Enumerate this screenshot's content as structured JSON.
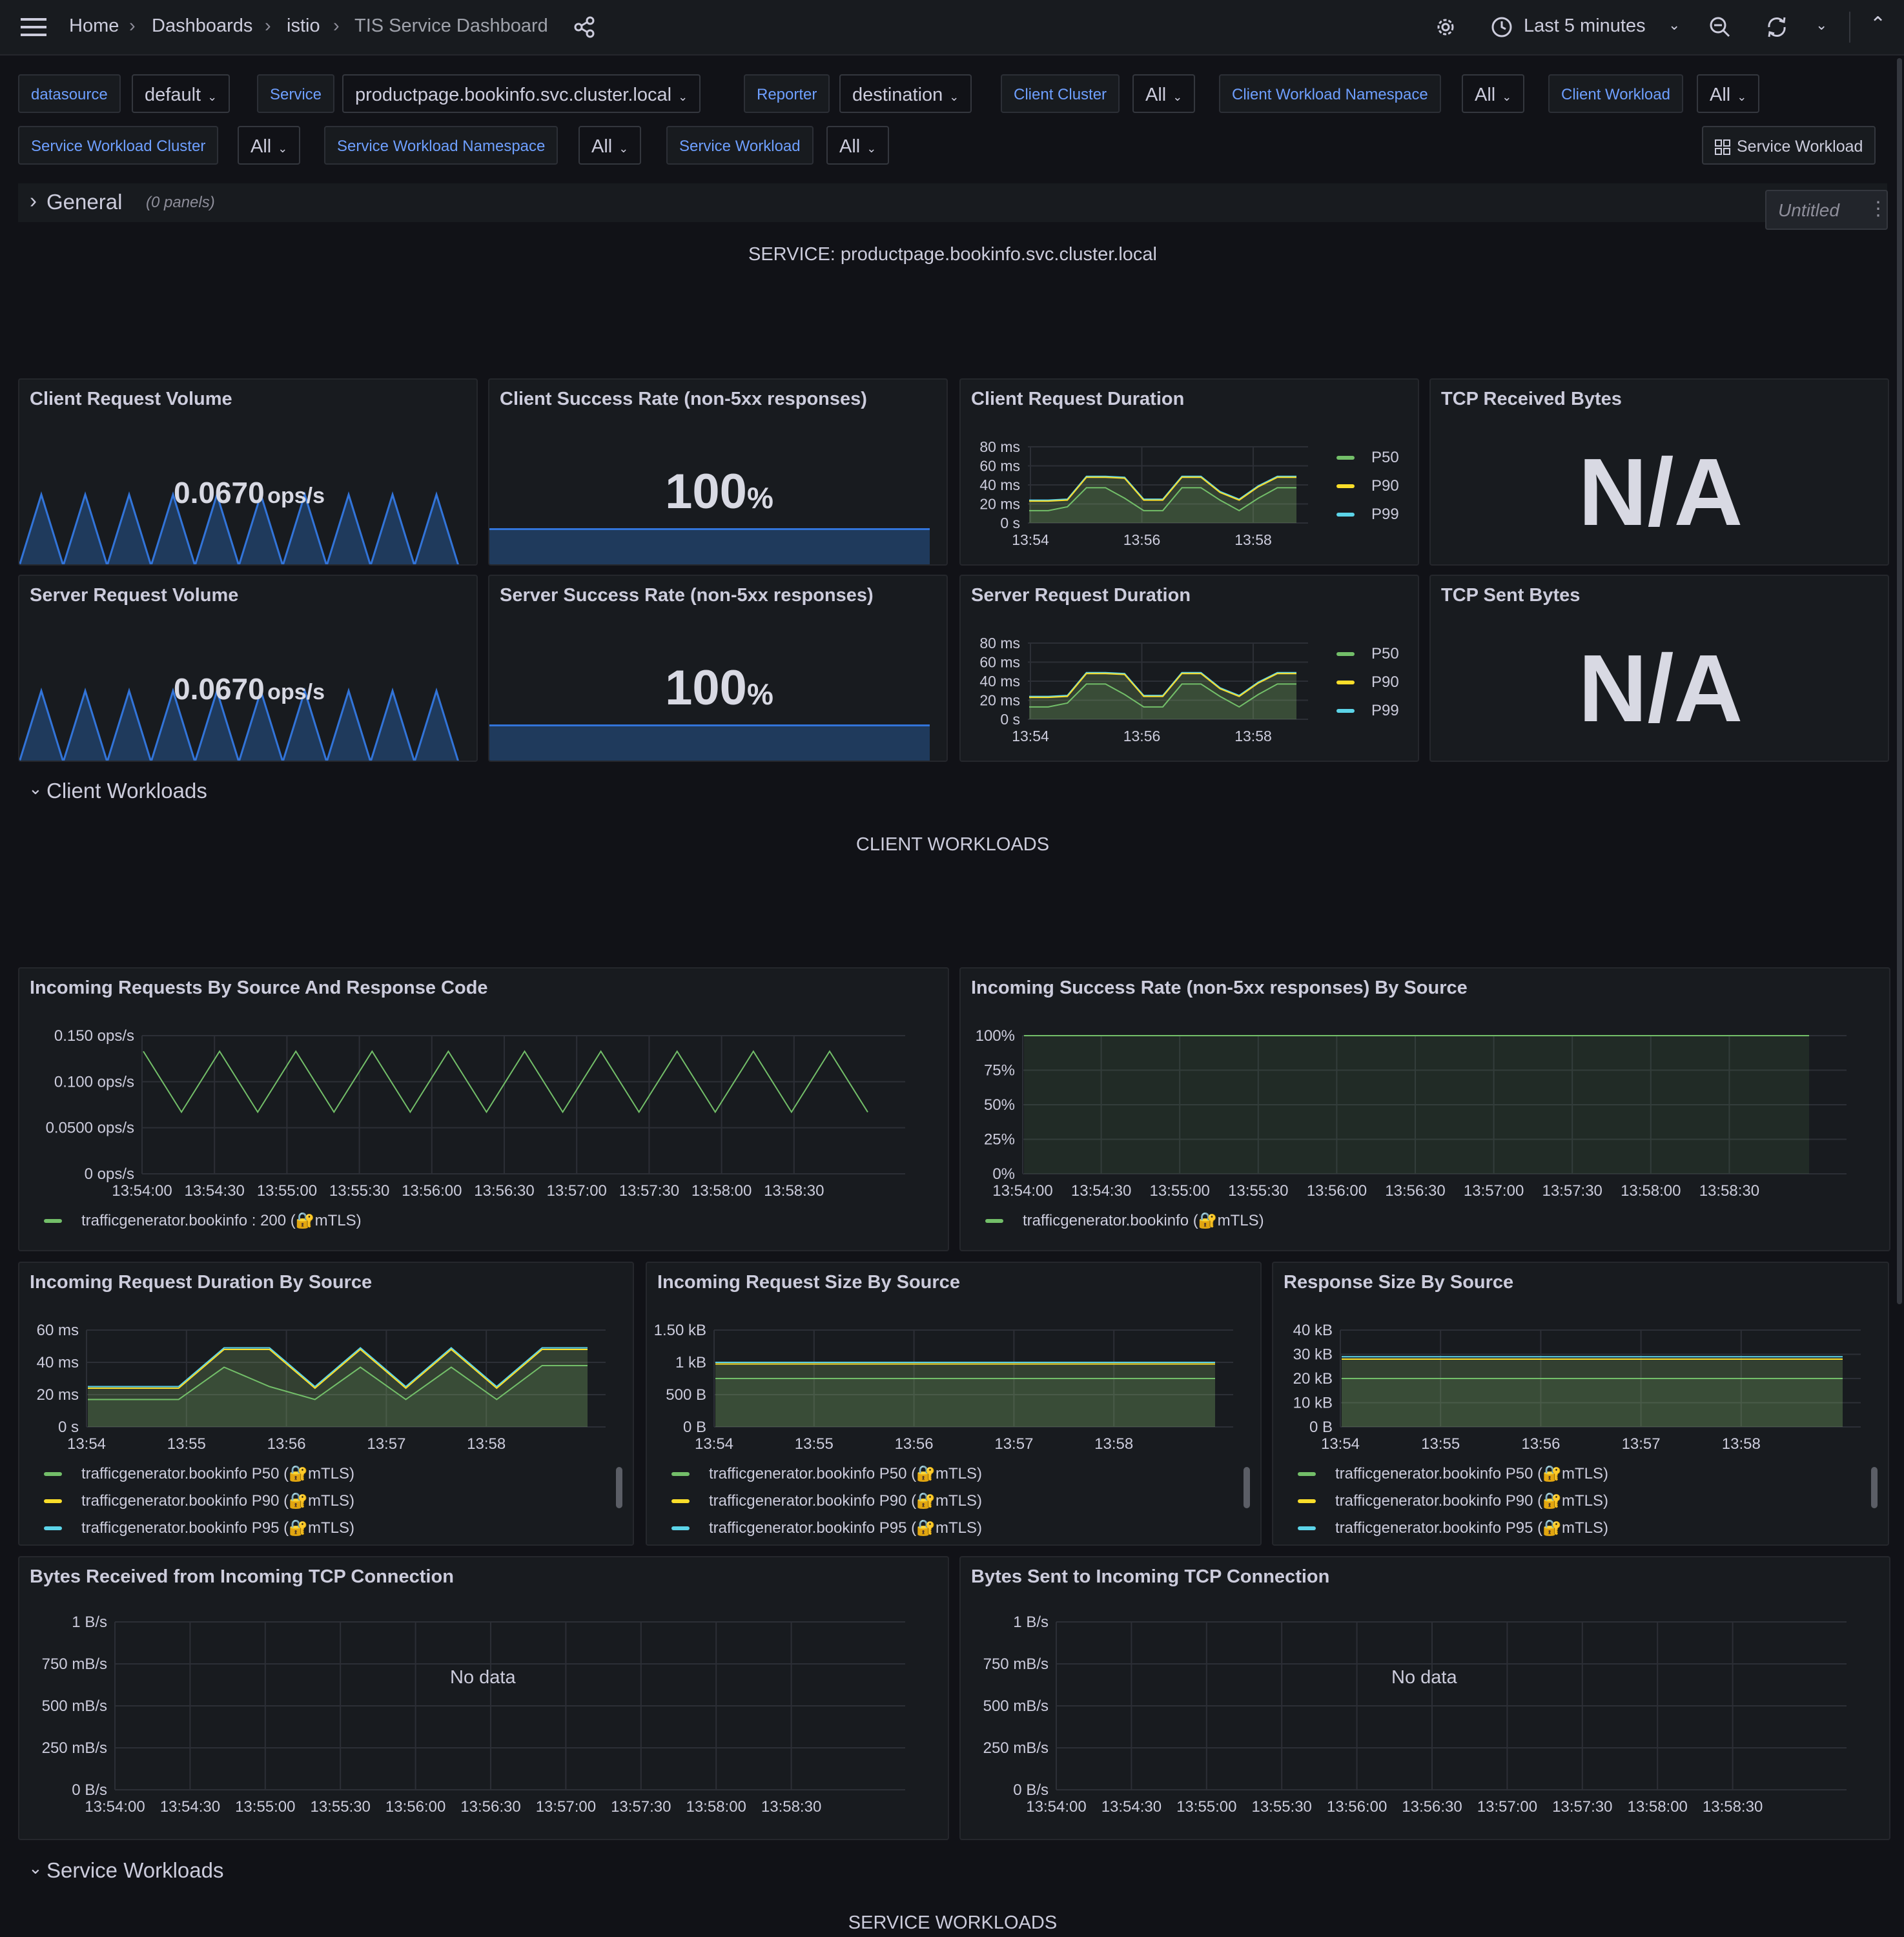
{
  "topbar": {
    "breadcrumbs": [
      "Home",
      "Dashboards",
      "istio",
      "TIS Service Dashboard"
    ],
    "time_range": "Last 5 minutes"
  },
  "variables": {
    "row1": [
      {
        "label": "datasource",
        "value": "default"
      },
      {
        "label": "Service",
        "value": "productpage.bookinfo.svc.cluster.local"
      },
      {
        "label": "Reporter",
        "value": "destination"
      },
      {
        "label": "Client Cluster",
        "value": "All"
      },
      {
        "label": "Client Workload Namespace",
        "value": "All"
      },
      {
        "label": "Client Workload",
        "value": "All"
      }
    ],
    "row2": [
      {
        "label": "Service Workload Cluster",
        "value": "All"
      },
      {
        "label": "Service Workload Namespace",
        "value": "All"
      },
      {
        "label": "Service Workload",
        "value": "All"
      }
    ],
    "link_button": "Service Workload"
  },
  "rows": {
    "general": {
      "title": "General",
      "subtitle": "(0 panels)"
    },
    "client_workloads": {
      "title": "Client Workloads"
    },
    "service_workloads": {
      "title": "Service Workloads"
    }
  },
  "untitled_button": "Untitled",
  "text_panels": {
    "service": "SERVICE: productpage.bookinfo.svc.cluster.local",
    "client_workloads": "CLIENT WORKLOADS",
    "service_workloads": "SERVICE WORKLOADS"
  },
  "stats": {
    "client_request_volume": {
      "title": "Client Request Volume",
      "value": "0.0670",
      "unit": "ops/s"
    },
    "client_success_rate": {
      "title": "Client Success Rate (non-5xx responses)",
      "value": "100",
      "unit": "%"
    },
    "tcp_received": {
      "title": "TCP Received Bytes",
      "value": "N/A"
    },
    "server_request_volume": {
      "title": "Server Request Volume",
      "value": "0.0670",
      "unit": "ops/s"
    },
    "server_success_rate": {
      "title": "Server Success Rate (non-5xx responses)",
      "value": "100",
      "unit": "%"
    },
    "tcp_sent": {
      "title": "TCP Sent Bytes",
      "value": "N/A"
    }
  },
  "colors": {
    "green": "#73bf69",
    "yellow": "#fade2a",
    "cyan": "#5cd4e8",
    "orange": "#ff9830",
    "blue": "#3274d9",
    "link": "#6e9fff",
    "background": "#111217",
    "panel": "#181b1f"
  },
  "no_data": "No data",
  "chart_data": [
    {
      "id": "client_request_duration",
      "title": "Client Request Duration",
      "type": "area",
      "y_ticks": [
        "80 ms",
        "60 ms",
        "40 ms",
        "20 ms",
        "0 s"
      ],
      "x_ticks": [
        "13:54",
        "13:56",
        "13:58"
      ],
      "ylim": [
        0,
        80
      ],
      "legend": [
        "P50",
        "P90",
        "P99"
      ],
      "series": [
        {
          "name": "P50",
          "values": [
            13,
            13,
            17,
            37,
            37,
            26,
            13,
            13,
            37,
            37,
            24,
            13,
            26,
            37,
            37
          ]
        },
        {
          "name": "P90",
          "values": [
            23,
            23,
            24,
            48,
            48,
            47,
            24,
            24,
            48,
            48,
            32,
            24,
            38,
            48,
            48
          ]
        },
        {
          "name": "P99",
          "values": [
            24,
            24,
            25,
            49,
            49,
            48,
            25,
            25,
            49,
            49,
            33,
            25,
            39,
            49,
            49
          ]
        }
      ]
    },
    {
      "id": "server_request_duration",
      "title": "Server Request Duration",
      "type": "area",
      "y_ticks": [
        "80 ms",
        "60 ms",
        "40 ms",
        "20 ms",
        "0 s"
      ],
      "x_ticks": [
        "13:54",
        "13:56",
        "13:58"
      ],
      "ylim": [
        0,
        80
      ],
      "legend": [
        "P50",
        "P90",
        "P99"
      ],
      "series": [
        {
          "name": "P50",
          "values": [
            13,
            13,
            17,
            37,
            37,
            26,
            13,
            13,
            37,
            37,
            24,
            13,
            26,
            37,
            37
          ]
        },
        {
          "name": "P90",
          "values": [
            23,
            23,
            24,
            48,
            48,
            47,
            24,
            24,
            48,
            48,
            32,
            24,
            38,
            48,
            48
          ]
        },
        {
          "name": "P99",
          "values": [
            24,
            24,
            25,
            49,
            49,
            48,
            25,
            25,
            49,
            49,
            33,
            25,
            39,
            49,
            49
          ]
        }
      ]
    },
    {
      "id": "incoming_requests",
      "title": "Incoming Requests By Source And Response Code",
      "type": "line",
      "y_ticks": [
        "0.150 ops/s",
        "0.100 ops/s",
        "0.0500 ops/s",
        "0 ops/s"
      ],
      "x_ticks": [
        "13:54:00",
        "13:54:30",
        "13:55:00",
        "13:55:30",
        "13:56:00",
        "13:56:30",
        "13:57:00",
        "13:57:30",
        "13:58:00",
        "13:58:30"
      ],
      "ylim": [
        0,
        0.15
      ],
      "legend": [
        "trafficgenerator.bookinfo : 200 (🔐mTLS)"
      ],
      "series": [
        {
          "name": "trafficgenerator.bookinfo : 200 (🔐mTLS)",
          "values": [
            0.133,
            0.067,
            0.133,
            0.067,
            0.133,
            0.067,
            0.133,
            0.067,
            0.133,
            0.067,
            0.133,
            0.067,
            0.133,
            0.067,
            0.133,
            0.067,
            0.133,
            0.067,
            0.133,
            0.067
          ]
        }
      ]
    },
    {
      "id": "incoming_success_rate",
      "title": "Incoming Success Rate (non-5xx responses) By Source",
      "type": "area",
      "y_ticks": [
        "100%",
        "75%",
        "50%",
        "25%",
        "0%"
      ],
      "x_ticks": [
        "13:54:00",
        "13:54:30",
        "13:55:00",
        "13:55:30",
        "13:56:00",
        "13:56:30",
        "13:57:00",
        "13:57:30",
        "13:58:00",
        "13:58:30"
      ],
      "ylim": [
        0,
        100
      ],
      "legend": [
        "trafficgenerator.bookinfo (🔐mTLS)"
      ],
      "series": [
        {
          "name": "trafficgenerator.bookinfo (🔐mTLS)",
          "values": [
            100,
            100
          ]
        }
      ]
    },
    {
      "id": "incoming_request_duration",
      "title": "Incoming Request Duration By Source",
      "type": "area",
      "y_ticks": [
        "60 ms",
        "40 ms",
        "20 ms",
        "0 s"
      ],
      "x_ticks": [
        "13:54",
        "13:55",
        "13:56",
        "13:57",
        "13:58"
      ],
      "ylim": [
        0,
        60
      ],
      "legend": [
        "trafficgenerator.bookinfo P50 (🔐mTLS)",
        "trafficgenerator.bookinfo P90 (🔐mTLS)",
        "trafficgenerator.bookinfo P95 (🔐mTLS)"
      ],
      "series": [
        {
          "name": "trafficgenerator.bookinfo P50 (🔐mTLS)",
          "values": [
            17,
            17,
            17,
            37,
            25,
            17,
            37,
            17,
            37,
            17,
            38,
            38
          ]
        },
        {
          "name": "trafficgenerator.bookinfo P90 (🔐mTLS)",
          "values": [
            24,
            24,
            24,
            48,
            48,
            24,
            48,
            24,
            48,
            24,
            48,
            48
          ]
        },
        {
          "name": "trafficgenerator.bookinfo P95 (🔐mTLS)",
          "values": [
            25,
            25,
            25,
            49,
            49,
            25,
            49,
            25,
            49,
            25,
            49,
            49
          ]
        }
      ]
    },
    {
      "id": "incoming_request_size",
      "title": "Incoming Request Size By Source",
      "type": "area",
      "y_ticks": [
        "1.50 kB",
        "1 kB",
        "500 B",
        "0 B"
      ],
      "x_ticks": [
        "13:54",
        "13:55",
        "13:56",
        "13:57",
        "13:58"
      ],
      "ylim": [
        0,
        1500
      ],
      "legend": [
        "trafficgenerator.bookinfo P50 (🔐mTLS)",
        "trafficgenerator.bookinfo P90 (🔐mTLS)",
        "trafficgenerator.bookinfo P95 (🔐mTLS)"
      ],
      "series": [
        {
          "name": "trafficgenerator.bookinfo P50 (🔐mTLS)",
          "values": [
            750,
            750
          ]
        },
        {
          "name": "trafficgenerator.bookinfo P90 (🔐mTLS)",
          "values": [
            975,
            975
          ]
        },
        {
          "name": "trafficgenerator.bookinfo P95 (🔐mTLS)",
          "values": [
            1000,
            1000
          ]
        }
      ]
    },
    {
      "id": "response_size",
      "title": "Response Size By Source",
      "type": "area",
      "y_ticks": [
        "40 kB",
        "30 kB",
        "20 kB",
        "10 kB",
        "0 B"
      ],
      "x_ticks": [
        "13:54",
        "13:55",
        "13:56",
        "13:57",
        "13:58"
      ],
      "ylim": [
        0,
        40
      ],
      "legend": [
        "trafficgenerator.bookinfo P50 (🔐mTLS)",
        "trafficgenerator.bookinfo P90 (🔐mTLS)",
        "trafficgenerator.bookinfo P95 (🔐mTLS)"
      ],
      "series": [
        {
          "name": "trafficgenerator.bookinfo P50 (🔐mTLS)",
          "values": [
            20,
            20
          ]
        },
        {
          "name": "trafficgenerator.bookinfo P90 (🔐mTLS)",
          "values": [
            28,
            28
          ]
        },
        {
          "name": "trafficgenerator.bookinfo P95 (🔐mTLS)",
          "values": [
            29,
            29
          ]
        }
      ]
    },
    {
      "id": "bytes_received_tcp",
      "title": "Bytes Received from Incoming TCP Connection",
      "type": "line",
      "y_ticks": [
        "1 B/s",
        "750 mB/s",
        "500 mB/s",
        "250 mB/s",
        "0 B/s"
      ],
      "x_ticks": [
        "13:54:00",
        "13:54:30",
        "13:55:00",
        "13:55:30",
        "13:56:00",
        "13:56:30",
        "13:57:00",
        "13:57:30",
        "13:58:00",
        "13:58:30"
      ],
      "series": []
    },
    {
      "id": "bytes_sent_tcp",
      "title": "Bytes Sent to Incoming TCP Connection",
      "type": "line",
      "y_ticks": [
        "1 B/s",
        "750 mB/s",
        "500 mB/s",
        "250 mB/s",
        "0 B/s"
      ],
      "x_ticks": [
        "13:54:00",
        "13:54:30",
        "13:55:00",
        "13:55:30",
        "13:56:00",
        "13:56:30",
        "13:57:00",
        "13:57:30",
        "13:58:00",
        "13:58:30"
      ],
      "series": []
    }
  ]
}
